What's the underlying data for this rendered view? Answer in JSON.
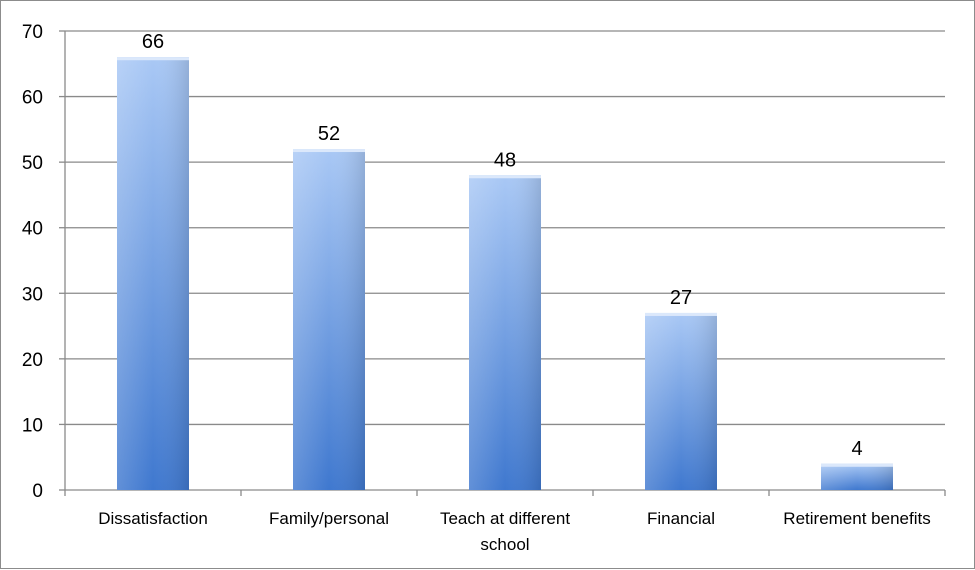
{
  "chart_data": {
    "type": "bar",
    "title": "",
    "xlabel": "",
    "ylabel": "",
    "categories": [
      [
        "Dissatisfaction"
      ],
      [
        "Family/personal"
      ],
      [
        "Teach at different",
        "school"
      ],
      [
        "Financial"
      ],
      [
        "Retirement benefits"
      ]
    ],
    "values": [
      66,
      52,
      48,
      27,
      4
    ],
    "ylim": [
      0,
      70
    ],
    "yticks": [
      0,
      10,
      20,
      30,
      40,
      50,
      60,
      70
    ],
    "grid": true,
    "data_labels": true,
    "legend": "none",
    "colors": {
      "bar_light": "#a9c8f5",
      "bar_dark": "#3f78cf",
      "grid": "#8a8a8a",
      "axis": "#8a8a8a"
    }
  }
}
